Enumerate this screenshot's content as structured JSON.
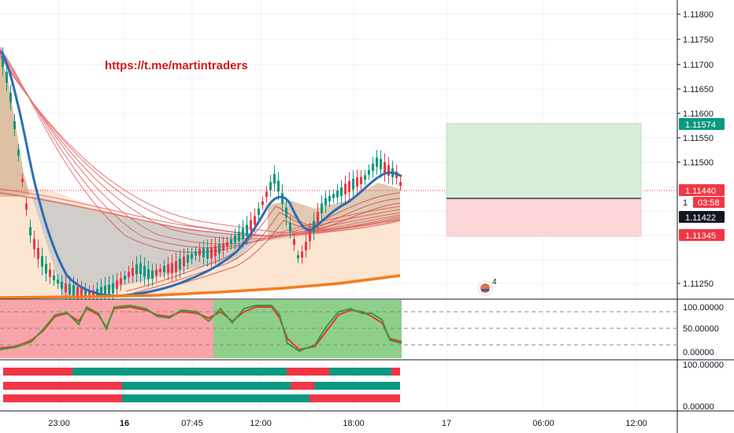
{
  "watermark_link": "https://t.me/martintraders",
  "price_axis": {
    "ticks": [
      "1.11800",
      "1.11750",
      "1.11700",
      "1.11650",
      "1.11600",
      "1.11550",
      "1.11500",
      "1.11250"
    ],
    "badges": {
      "target": {
        "label": "1.11574",
        "color": "#089981"
      },
      "last": {
        "label": "1.11440",
        "color": "#f23645"
      },
      "countdown": {
        "label": "03:58",
        "color": "#f23645"
      },
      "entry": {
        "label": "1.11422",
        "color": "#131722"
      },
      "stop": {
        "label": "1.11345",
        "color": "#f23645"
      }
    },
    "partial_label": "1"
  },
  "osc_axis": {
    "ticks": [
      "100.00000",
      "50.00000",
      "0.00000"
    ]
  },
  "bars_axis": {
    "ticks": [
      "100.00000",
      "0.00000"
    ]
  },
  "time_axis": {
    "ticks": [
      "23:00",
      "16",
      "07:45",
      "12:00",
      "18:00",
      "17",
      "06:00",
      "12:00"
    ]
  },
  "event_badge": {
    "count": "4"
  },
  "colors": {
    "bull": "#089981",
    "bear": "#f23645",
    "trend_line": "#2a6db5",
    "slow_ma": "#f57c1f",
    "ribbon": "#e05050",
    "osc_green": "#3a9b3a",
    "osc_red": "#e53935"
  }
}
